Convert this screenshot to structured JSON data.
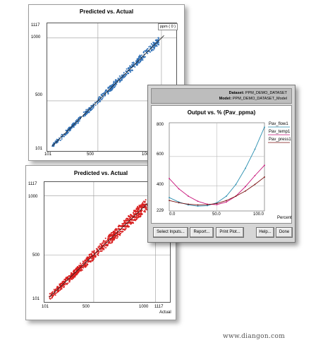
{
  "top_window": {
    "title": "Predicted vs. Actual",
    "y_ticks": [
      "1117",
      "1000",
      "500",
      "101"
    ],
    "x_ticks": [
      "101",
      "500",
      "100"
    ],
    "legend": "ppm ( 0 )"
  },
  "bottom_window": {
    "title": "Predicted vs. Actual",
    "y_ticks": [
      "1117",
      "1000",
      "500",
      "101"
    ],
    "x_ticks": [
      "101",
      "500",
      "1000",
      "1117"
    ],
    "x_label": "Actual"
  },
  "dialog": {
    "dataset_label": "Dataset:",
    "dataset_value": "PPM_DEMO_DATASET",
    "model_label": "Model:",
    "model_value": "PPM_DEMO_DATASET_Model",
    "plot_title": "Output vs. % (Pav_ppma)",
    "y_ticks": [
      "800",
      "600",
      "400",
      "229"
    ],
    "x_ticks": [
      "0.0",
      "50.0",
      "100.0"
    ],
    "x_label": "Percent",
    "legend": [
      "Pav_flow1",
      "Pav_temp1",
      "Pav_press1"
    ],
    "buttons": {
      "select_inputs": "Select Inputs...",
      "report": "Report...",
      "print_plot": "Print Plot...",
      "help": "Help...",
      "done": "Done"
    }
  },
  "chart_data": [
    {
      "type": "scatter",
      "title": "Predicted vs. Actual",
      "xlabel": "",
      "ylabel": "",
      "xlim": [
        101,
        1117
      ],
      "ylim": [
        101,
        1117
      ],
      "series": [
        {
          "name": "ppm ( 0 )",
          "color": "#2f6fb5",
          "trend": "y = x"
        }
      ]
    },
    {
      "type": "scatter",
      "title": "Predicted vs. Actual",
      "xlabel": "Actual",
      "ylabel": "",
      "xlim": [
        101,
        1117
      ],
      "ylim": [
        101,
        1117
      ],
      "series": [
        {
          "color": "#d81e1e",
          "trend": "y = x"
        }
      ]
    },
    {
      "type": "line",
      "title": "Output vs. % (Pav_ppma)",
      "xlabel": "Percent",
      "ylabel": "",
      "xlim": [
        0,
        100
      ],
      "ylim": [
        229,
        830
      ],
      "x": [
        0,
        10,
        20,
        30,
        40,
        50,
        60,
        70,
        80,
        90,
        100
      ],
      "series": [
        {
          "name": "Pav_flow1",
          "color": "#2a8fb0",
          "values": [
            320,
            290,
            270,
            262,
            265,
            285,
            330,
            410,
            520,
            650,
            800
          ]
        },
        {
          "name": "Pav_temp1",
          "color": "#c8147a",
          "values": [
            450,
            380,
            330,
            295,
            275,
            272,
            290,
            330,
            395,
            470,
            540
          ]
        },
        {
          "name": "Pav_press1",
          "color": "#7a1010",
          "values": [
            300,
            285,
            275,
            270,
            272,
            280,
            300,
            330,
            365,
            410,
            460
          ]
        }
      ]
    }
  ],
  "watermark": "www.diangon.com",
  "colors": {
    "blue_points": "#2f6fb5",
    "red_points": "#d81e1e",
    "dialog_bg": "#d6d6d6"
  }
}
